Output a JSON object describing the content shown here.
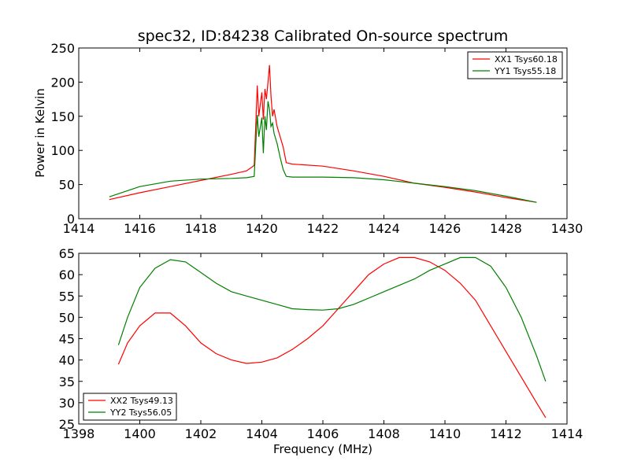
{
  "chart_data": [
    {
      "type": "line",
      "title": "spec32, ID:84238 Calibrated On-source spectrum",
      "xlabel": "",
      "ylabel": "Power in Kelvin",
      "xlim": [
        1414,
        1430
      ],
      "ylim": [
        0,
        250
      ],
      "xticks": [
        1414,
        1416,
        1418,
        1420,
        1422,
        1424,
        1426,
        1428,
        1430
      ],
      "yticks": [
        0,
        50,
        100,
        150,
        200,
        250
      ],
      "legend_position": "top-right",
      "series": [
        {
          "name": "XX1 Tsys60.18",
          "color": "#ff0000",
          "x": [
            1415.0,
            1416.0,
            1417.0,
            1418.0,
            1419.0,
            1419.5,
            1419.75,
            1419.85,
            1419.9,
            1420.0,
            1420.05,
            1420.1,
            1420.15,
            1420.2,
            1420.25,
            1420.3,
            1420.35,
            1420.4,
            1420.5,
            1420.6,
            1420.7,
            1420.8,
            1421.0,
            1422.0,
            1423.0,
            1424.0,
            1425.0,
            1426.0,
            1427.0,
            1428.0,
            1429.0
          ],
          "y": [
            28,
            38,
            47,
            56,
            65,
            70,
            78,
            195,
            150,
            185,
            145,
            190,
            175,
            200,
            225,
            180,
            150,
            160,
            135,
            120,
            105,
            82,
            80,
            77,
            70,
            62,
            52,
            46,
            39,
            31,
            24
          ]
        },
        {
          "name": "YY1 Tsys55.18",
          "color": "#007f00",
          "x": [
            1415.0,
            1416.0,
            1417.0,
            1418.0,
            1419.0,
            1419.5,
            1419.75,
            1419.85,
            1419.9,
            1420.0,
            1420.05,
            1420.1,
            1420.15,
            1420.2,
            1420.25,
            1420.3,
            1420.35,
            1420.4,
            1420.5,
            1420.6,
            1420.7,
            1420.8,
            1421.0,
            1422.0,
            1423.0,
            1424.0,
            1425.0,
            1426.0,
            1427.0,
            1428.0,
            1429.0
          ],
          "y": [
            32,
            47,
            55,
            58,
            59,
            60,
            62,
            152,
            120,
            148,
            96,
            150,
            130,
            172,
            160,
            135,
            140,
            125,
            110,
            90,
            72,
            62,
            61,
            61,
            60,
            57,
            52,
            47,
            41,
            33,
            24
          ]
        }
      ]
    },
    {
      "type": "line",
      "title": "",
      "xlabel": "Frequency (MHz)",
      "ylabel": "",
      "xlim": [
        1398,
        1414
      ],
      "ylim": [
        25,
        65
      ],
      "xticks": [
        1398,
        1400,
        1402,
        1404,
        1406,
        1408,
        1410,
        1412,
        1414
      ],
      "yticks": [
        25,
        30,
        35,
        40,
        45,
        50,
        55,
        60,
        65
      ],
      "legend_position": "bottom-left",
      "series": [
        {
          "name": "XX2 Tsys49.13",
          "color": "#ff0000",
          "x": [
            1399.3,
            1399.6,
            1400.0,
            1400.5,
            1401.0,
            1401.5,
            1402.0,
            1402.5,
            1403.0,
            1403.5,
            1404.0,
            1404.5,
            1405.0,
            1405.5,
            1406.0,
            1406.5,
            1407.0,
            1407.5,
            1408.0,
            1408.5,
            1409.0,
            1409.5,
            1410.0,
            1410.5,
            1411.0,
            1411.5,
            1412.0,
            1412.5,
            1413.0,
            1413.3
          ],
          "y": [
            39,
            44,
            48,
            51,
            51,
            48,
            44,
            41.5,
            40,
            39.2,
            39.5,
            40.5,
            42.5,
            45,
            48,
            52,
            56,
            60,
            62.5,
            64,
            64,
            63,
            61,
            58,
            54,
            48,
            42,
            36,
            30,
            26.5
          ]
        },
        {
          "name": "YY2 Tsys56.05",
          "color": "#007f00",
          "x": [
            1399.3,
            1399.6,
            1400.0,
            1400.5,
            1401.0,
            1401.5,
            1402.0,
            1402.5,
            1403.0,
            1403.5,
            1404.0,
            1404.5,
            1405.0,
            1405.5,
            1406.0,
            1406.5,
            1407.0,
            1407.5,
            1408.0,
            1408.5,
            1409.0,
            1409.5,
            1410.0,
            1410.5,
            1411.0,
            1411.5,
            1412.0,
            1412.5,
            1413.0,
            1413.3
          ],
          "y": [
            43.5,
            50,
            57,
            61.5,
            63.5,
            63,
            60.5,
            58,
            56,
            55,
            54,
            53,
            52,
            51.8,
            51.7,
            52,
            53,
            54.5,
            56,
            57.5,
            59,
            61,
            62.5,
            64,
            64,
            62,
            57,
            50,
            41,
            35
          ]
        }
      ]
    }
  ]
}
